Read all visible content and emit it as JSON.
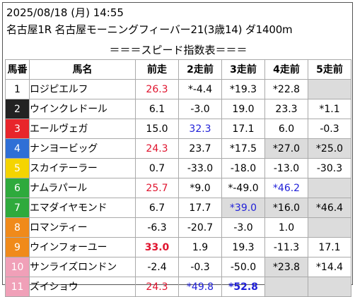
{
  "header": {
    "datetime": "2025/08/18 (月) 14:55",
    "race": "名古屋1R 名古屋モーニングフィーバー21(3歳14) ダ1400m",
    "caption": "＝＝＝スピード指数表＝＝＝"
  },
  "columns": [
    "馬番",
    "馬名",
    "前走",
    "2走前",
    "3走前",
    "4走前",
    "5走前"
  ],
  "colors": {
    "red": "#e0142e",
    "blue": "#1f1fd8",
    "shade": "#dcdcdc",
    "wakuban": [
      "#ffffff",
      "#222222",
      "#e8252b",
      "#2f6fd6",
      "#f5d400",
      "#2eaa3c",
      "#f08a1a",
      "#f0a0b8"
    ]
  },
  "rows": [
    {
      "num": "1",
      "num_bg": "#ffffff",
      "num_fg": "#000000",
      "name": "ロジピエルフ",
      "cells": [
        {
          "v": "26.3",
          "c": "red"
        },
        {
          "v": "*-4.4"
        },
        {
          "v": "*19.3"
        },
        {
          "v": "*22.8"
        },
        {
          "v": "",
          "shade": true
        }
      ]
    },
    {
      "num": "2",
      "num_bg": "#222222",
      "num_fg": "#ffffff",
      "name": "ウインクレドール",
      "cells": [
        {
          "v": "6.1"
        },
        {
          "v": "-3.0"
        },
        {
          "v": "19.0"
        },
        {
          "v": "23.3"
        },
        {
          "v": "*1.1"
        }
      ]
    },
    {
      "num": "3",
      "num_bg": "#e8252b",
      "num_fg": "#ffffff",
      "name": "エールヴェガ",
      "cells": [
        {
          "v": "15.0"
        },
        {
          "v": "32.3",
          "c": "blue"
        },
        {
          "v": "17.1"
        },
        {
          "v": "6.0"
        },
        {
          "v": "-0.3"
        }
      ]
    },
    {
      "num": "4",
      "num_bg": "#2f6fd6",
      "num_fg": "#ffffff",
      "name": "ナンヨービッグ",
      "cells": [
        {
          "v": "24.3",
          "c": "red"
        },
        {
          "v": "23.7"
        },
        {
          "v": "*17.5"
        },
        {
          "v": "*27.0",
          "shade": true
        },
        {
          "v": "*25.0",
          "shade": true
        }
      ]
    },
    {
      "num": "5",
      "num_bg": "#f5d400",
      "num_fg": "#ffffff",
      "name": "スカイテーラー",
      "cells": [
        {
          "v": "0.7"
        },
        {
          "v": "-33.0"
        },
        {
          "v": "-18.0"
        },
        {
          "v": "-13.0"
        },
        {
          "v": "-30.3"
        }
      ]
    },
    {
      "num": "6",
      "num_bg": "#2eaa3c",
      "num_fg": "#ffffff",
      "name": "ナムラパール",
      "cells": [
        {
          "v": "25.7",
          "c": "red"
        },
        {
          "v": "*9.0"
        },
        {
          "v": "*-49.0"
        },
        {
          "v": "*46.2",
          "c": "blue"
        },
        {
          "v": "",
          "shade": true
        }
      ]
    },
    {
      "num": "7",
      "num_bg": "#2eaa3c",
      "num_fg": "#ffffff",
      "name": "エマダイヤモンド",
      "cells": [
        {
          "v": "6.7"
        },
        {
          "v": "17.7"
        },
        {
          "v": "*39.0",
          "c": "blue",
          "shade": true
        },
        {
          "v": "*16.0",
          "shade": true
        },
        {
          "v": "*46.4",
          "shade": true
        }
      ]
    },
    {
      "num": "8",
      "num_bg": "#f08a1a",
      "num_fg": "#ffffff",
      "name": "ロマンティー",
      "cells": [
        {
          "v": "-6.3"
        },
        {
          "v": "-20.7"
        },
        {
          "v": "-3.0"
        },
        {
          "v": "1.0"
        },
        {
          "v": "",
          "shade": true
        }
      ]
    },
    {
      "num": "9",
      "num_bg": "#f08a1a",
      "num_fg": "#ffffff",
      "name": "ウインフォーユー",
      "cells": [
        {
          "v": "33.0",
          "c": "red",
          "b": true
        },
        {
          "v": "1.9"
        },
        {
          "v": "19.3"
        },
        {
          "v": "-11.3"
        },
        {
          "v": "17.1"
        }
      ]
    },
    {
      "num": "10",
      "num_bg": "#f0a0b8",
      "num_fg": "#ffffff",
      "name": "サンライズロンドン",
      "cells": [
        {
          "v": "-2.4"
        },
        {
          "v": "-0.3"
        },
        {
          "v": "-50.0"
        },
        {
          "v": "*23.8",
          "shade": true
        },
        {
          "v": "*14.4"
        }
      ]
    },
    {
      "num": "11",
      "num_bg": "#f0a0b8",
      "num_fg": "#ffffff",
      "name": "ズイショウ",
      "cells": [
        {
          "v": "24.3",
          "c": "red"
        },
        {
          "v": "*49.8",
          "c": "blue"
        },
        {
          "v": "*52.8",
          "c": "blue",
          "b": true
        },
        {
          "v": "",
          "shade": true
        },
        {
          "v": "",
          "shade": true
        }
      ]
    }
  ]
}
